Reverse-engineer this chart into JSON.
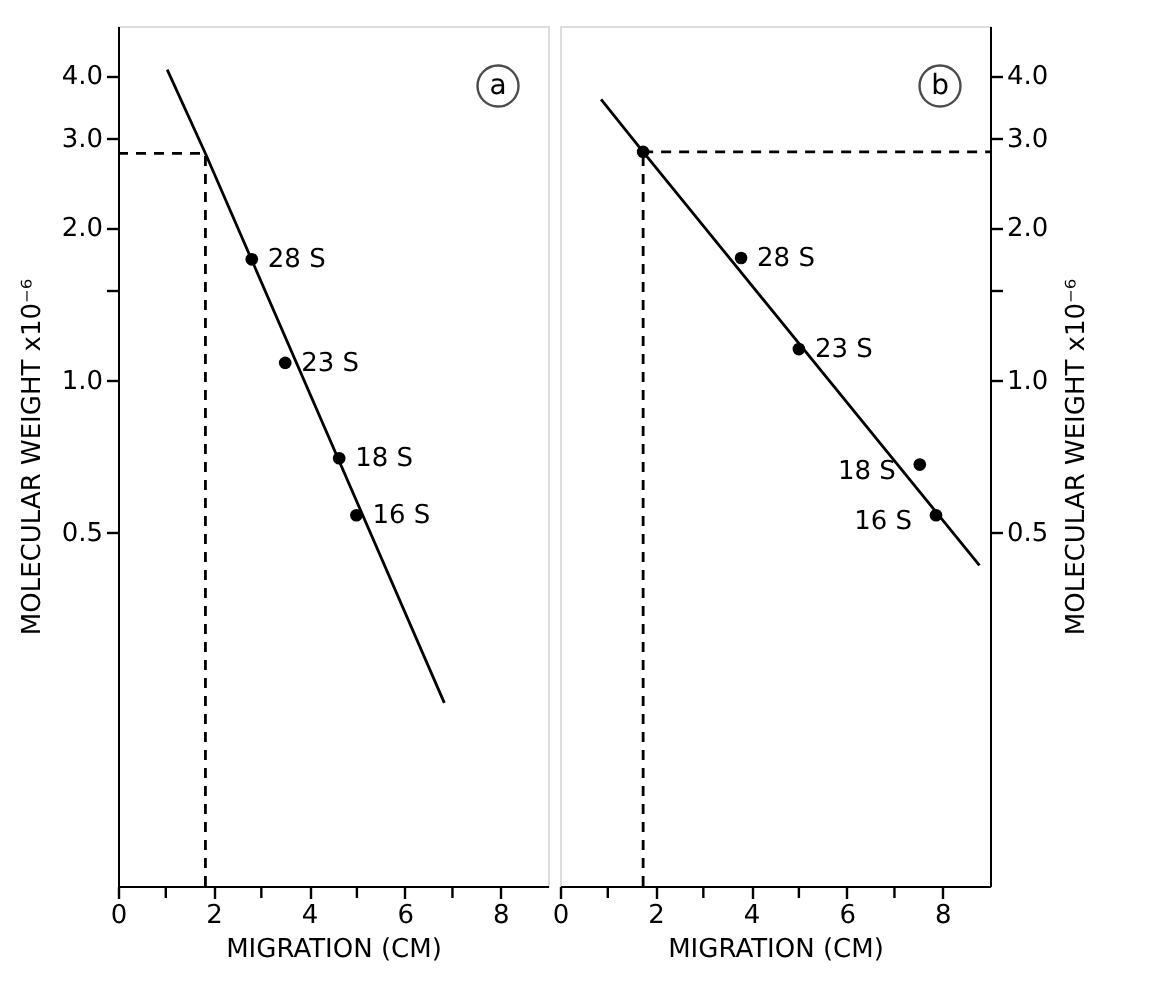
{
  "chart_data": [
    {
      "type": "line",
      "xlabel": "MIGRATION (CM)",
      "ylabel": "MOLECULAR WEIGHT  x10⁻⁶",
      "log": "y",
      "grid": false,
      "xlim": [
        0,
        9
      ],
      "xticks": [
        0,
        {
          "value": 1,
          "label": null
        },
        2,
        {
          "value": 3,
          "label": null
        },
        4,
        {
          "value": 5,
          "label": null
        },
        6,
        {
          "value": 7,
          "label": null
        },
        8
      ],
      "ylim": [
        0.1,
        5
      ],
      "yticks": [
        {
          "value": 0.5,
          "label": "0.5"
        },
        {
          "value": 1,
          "label": "1.0"
        },
        {
          "value": 1.5,
          "label": null
        },
        {
          "value": 2,
          "label": "2.0"
        },
        {
          "value": 3,
          "label": "3.0"
        },
        {
          "value": 4,
          "label": "4.0"
        }
      ],
      "series": [
        {
          "type": "line",
          "color": "#000000",
          "line_style": "solid",
          "x": [
            1.03,
            1.83,
            6.83
          ],
          "values": [
            4.1,
            2.8,
            0.23
          ]
        },
        {
          "type": "line",
          "color": "#000000",
          "line_style": "dashed",
          "x": [
            0,
            1.83
          ],
          "values": [
            2.8,
            2.8
          ]
        },
        {
          "type": "line",
          "color": "#000000",
          "line_style": "dashed",
          "x": [
            1.83,
            1.83
          ],
          "values": [
            0.1,
            2.8
          ]
        },
        {
          "type": "scatter",
          "color": "#000000",
          "marker": "circle",
          "x": [
            2.8,
            3.5,
            4.63,
            4.99
          ],
          "values": [
            1.73,
            1.08,
            0.7,
            0.54
          ]
        }
      ],
      "annotations": [
        "a",
        {
          "text": "28 S",
          "x": 2.8,
          "y": 1.73
        },
        {
          "text": "23 S",
          "x": 3.5,
          "y": 1.08
        },
        {
          "text": "18 S",
          "x": 4.63,
          "y": 0.7
        },
        {
          "text": "16 S",
          "x": 4.99,
          "y": 0.54
        }
      ]
    },
    {
      "type": "line",
      "xlabel": "MIGRATION (CM)",
      "ylabel": "MOLECULAR WEIGHT  x10⁻⁶",
      "log": "y",
      "grid": false,
      "xlim": [
        0,
        9
      ],
      "xticks": [
        0,
        {
          "value": 1,
          "label": null
        },
        2,
        {
          "value": 3,
          "label": null
        },
        4,
        {
          "value": 5,
          "label": null
        },
        6,
        {
          "value": 7,
          "label": null
        },
        8
      ],
      "ylim": [
        0.1,
        5
      ],
      "yticks": [
        {
          "value": 0.5,
          "label": "0.5"
        },
        {
          "value": 1,
          "label": "1.0"
        },
        {
          "value": 1.5,
          "label": null
        },
        {
          "value": 2,
          "label": "2.0"
        },
        {
          "value": 3,
          "label": "3.0"
        },
        {
          "value": 4,
          "label": "4.0"
        }
      ],
      "series": [
        {
          "type": "line",
          "color": "#000000",
          "line_style": "solid",
          "x": [
            0.86,
            1.74,
            8.78
          ],
          "values": [
            3.58,
            2.82,
            0.43
          ]
        },
        {
          "type": "line",
          "color": "#000000",
          "line_style": "dashed",
          "x": [
            1.74,
            9
          ],
          "values": [
            2.82,
            2.82
          ]
        },
        {
          "type": "line",
          "color": "#000000",
          "line_style": "dashed",
          "x": [
            1.74,
            1.74
          ],
          "values": [
            0.1,
            2.82
          ]
        },
        {
          "type": "scatter",
          "color": "#000000",
          "marker": "circle",
          "x": [
            1.74,
            3.79,
            5.0,
            7.53,
            7.87
          ],
          "values": [
            2.82,
            1.74,
            1.15,
            0.68,
            0.54
          ]
        }
      ],
      "annotations": [
        "b",
        {
          "text": "28 S",
          "x": 3.79,
          "y": 1.74
        },
        {
          "text": "23 S",
          "x": 5.0,
          "y": 1.15
        },
        {
          "text": "18 S",
          "x": 7.53,
          "y": 0.68
        },
        {
          "text": "16 S",
          "x": 7.87,
          "y": 0.54
        }
      ]
    }
  ]
}
